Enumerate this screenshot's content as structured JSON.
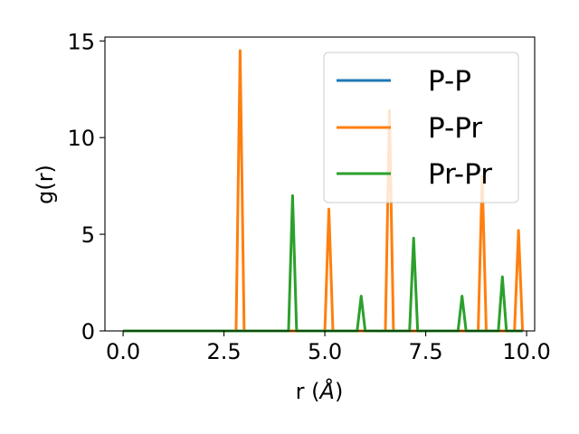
{
  "chart_data": {
    "type": "line",
    "xlabel_text": "r (",
    "xlabel_unit": "Å",
    "xlabel_close": ")",
    "ylabel": "g(r)",
    "xlim": [
      -0.45,
      10.2
    ],
    "ylim": [
      0,
      15.2
    ],
    "xticks": [
      0.0,
      2.5,
      5.0,
      7.5,
      10.0
    ],
    "xtick_labels": [
      "0.0",
      "2.5",
      "5.0",
      "7.5",
      "10.0"
    ],
    "yticks": [
      0,
      5,
      10,
      15
    ],
    "ytick_labels": [
      "0",
      "5",
      "10",
      "15"
    ],
    "grid": false,
    "legend_position": "top-right",
    "series": [
      {
        "name": "P-P",
        "color": "#1f77b4",
        "points": [
          [
            0.0,
            0
          ],
          [
            9.9,
            0
          ]
        ]
      },
      {
        "name": "P-Pr",
        "color": "#ff7f0e",
        "points": [
          [
            0.0,
            0
          ],
          [
            2.8,
            0
          ],
          [
            2.9,
            14.5
          ],
          [
            3.0,
            0
          ],
          [
            5.0,
            0
          ],
          [
            5.1,
            6.3
          ],
          [
            5.2,
            0
          ],
          [
            6.5,
            0
          ],
          [
            6.6,
            11.4
          ],
          [
            6.7,
            0
          ],
          [
            8.8,
            0
          ],
          [
            8.9,
            8.0
          ],
          [
            9.0,
            0
          ],
          [
            9.7,
            0
          ],
          [
            9.8,
            5.2
          ],
          [
            9.9,
            0
          ]
        ]
      },
      {
        "name": "Pr-Pr",
        "color": "#2ca02c",
        "points": [
          [
            0.0,
            0
          ],
          [
            4.1,
            0
          ],
          [
            4.2,
            7.0
          ],
          [
            4.3,
            0
          ],
          [
            5.8,
            0
          ],
          [
            5.9,
            1.8
          ],
          [
            6.0,
            0
          ],
          [
            7.1,
            0
          ],
          [
            7.2,
            4.8
          ],
          [
            7.3,
            0
          ],
          [
            8.3,
            0
          ],
          [
            8.4,
            1.8
          ],
          [
            8.5,
            0
          ],
          [
            9.3,
            0
          ],
          [
            9.4,
            2.8
          ],
          [
            9.5,
            0
          ],
          [
            9.9,
            0
          ]
        ]
      }
    ]
  }
}
